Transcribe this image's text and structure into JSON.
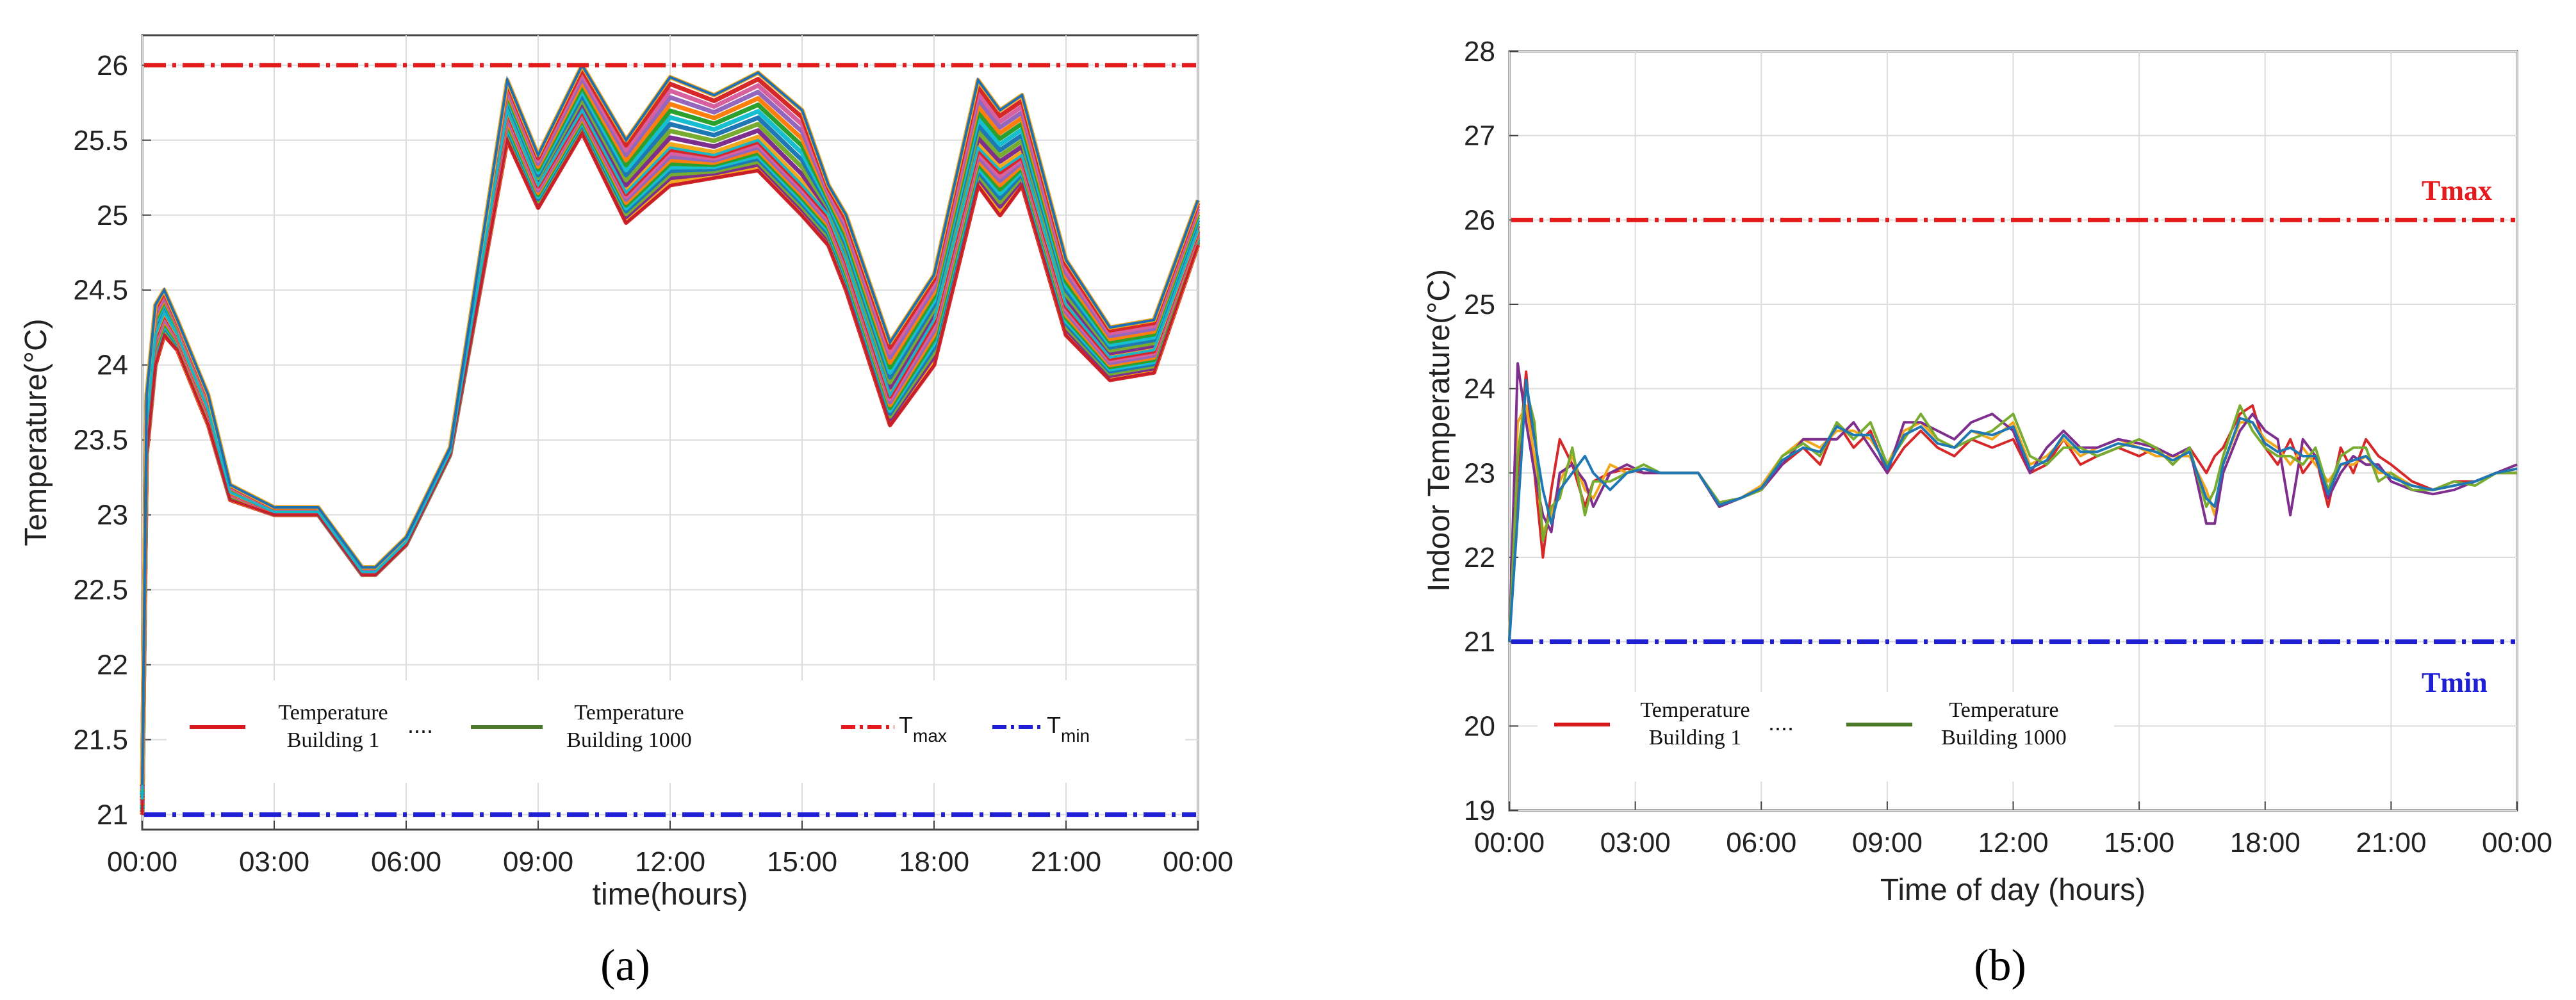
{
  "colors": {
    "tmax": "#e41a1c",
    "tmin": "#1f1fd6",
    "legend_b1": "#d7191c",
    "legend_b1000": "#4a7a2a",
    "series_palette": [
      "#d62828",
      "#f2a81d",
      "#7e2f8e",
      "#77ac30",
      "#1f77b4",
      "#17becf",
      "#2ca02c",
      "#ff7f0e",
      "#9467bd",
      "#d6619e"
    ]
  },
  "chart_data": [
    {
      "type": "line",
      "caption": "(a)",
      "xlabel": "time(hours)",
      "ylabel": "Temperature(°C)",
      "xticks": [
        "00:00",
        "03:00",
        "06:00",
        "09:00",
        "12:00",
        "15:00",
        "18:00",
        "21:00",
        "00:00"
      ],
      "xlim": [
        0,
        24
      ],
      "ylim": [
        20.9,
        26.2
      ],
      "yticks": [
        "21",
        "21.5",
        "22",
        "22.5",
        "23",
        "23.5",
        "24",
        "24.5",
        "25",
        "25.5",
        "26"
      ],
      "grid": true,
      "thresholds": {
        "tmax": 26,
        "tmin": 21
      },
      "legend": {
        "b1_line1": "Temperature",
        "b1_line2": "Building 1",
        "dots": "....",
        "b1000_line1": "Temperature",
        "b1000_line2": "Building 1000",
        "tmax_label": "T",
        "tmax_sub": "max",
        "tmin_label": "T",
        "tmin_sub": "min"
      },
      "series": [
        {
          "name": "band-low",
          "x": [
            0,
            0.1,
            0.3,
            0.5,
            0.8,
            1.5,
            2.0,
            3.0,
            4.0,
            5.0,
            5.3,
            6.0,
            7.0,
            8.3,
            9.0,
            10.0,
            11.0,
            12.0,
            13.0,
            14.0,
            15.0,
            15.6,
            16.0,
            17.0,
            18.0,
            19.0,
            19.5,
            20.0,
            21.0,
            22.0,
            23.0,
            24.0
          ],
          "y": [
            21.0,
            23.4,
            24.0,
            24.2,
            24.1,
            23.6,
            23.1,
            23.0,
            23.0,
            22.6,
            22.6,
            22.8,
            23.4,
            25.5,
            25.05,
            25.55,
            24.95,
            25.2,
            25.25,
            25.3,
            25.0,
            24.8,
            24.5,
            23.6,
            24.0,
            25.2,
            25.0,
            25.2,
            24.2,
            23.9,
            23.95,
            24.8
          ]
        },
        {
          "name": "band-mid",
          "x": [
            0,
            0.1,
            0.3,
            0.5,
            0.8,
            1.5,
            2.0,
            3.0,
            4.0,
            5.0,
            5.3,
            6.0,
            7.0,
            8.3,
            9.0,
            10.0,
            11.0,
            12.0,
            13.0,
            14.0,
            15.0,
            15.6,
            16.0,
            17.0,
            18.0,
            19.0,
            19.5,
            20.0,
            21.0,
            22.0,
            23.0,
            24.0
          ],
          "y": [
            21.1,
            23.6,
            24.2,
            24.35,
            24.2,
            23.7,
            23.15,
            23.02,
            23.02,
            22.62,
            22.62,
            22.82,
            23.42,
            25.7,
            25.2,
            25.7,
            25.15,
            25.45,
            25.4,
            25.5,
            25.2,
            25.0,
            24.7,
            23.8,
            24.3,
            25.45,
            25.3,
            25.4,
            24.4,
            24.05,
            24.1,
            24.9
          ]
        },
        {
          "name": "band-high",
          "x": [
            0,
            0.1,
            0.3,
            0.5,
            0.8,
            1.5,
            2.0,
            3.0,
            4.0,
            5.0,
            5.3,
            6.0,
            7.0,
            8.3,
            9.0,
            10.0,
            11.0,
            12.0,
            13.0,
            14.0,
            15.0,
            15.6,
            16.0,
            17.0,
            18.0,
            19.0,
            19.5,
            20.0,
            21.0,
            22.0,
            23.0,
            24.0
          ],
          "y": [
            21.2,
            23.8,
            24.4,
            24.5,
            24.3,
            23.8,
            23.2,
            23.05,
            23.05,
            22.65,
            22.65,
            22.85,
            23.45,
            25.9,
            25.4,
            26.0,
            25.5,
            25.92,
            25.8,
            25.95,
            25.7,
            25.2,
            25.0,
            24.15,
            24.6,
            25.9,
            25.7,
            25.8,
            24.7,
            24.25,
            24.3,
            25.1
          ]
        }
      ]
    },
    {
      "type": "line",
      "caption": "(b)",
      "xlabel": "Time of day (hours)",
      "ylabel": "Indoor Temperature(°C)",
      "xticks": [
        "00:00",
        "03:00",
        "06:00",
        "09:00",
        "12:00",
        "15:00",
        "18:00",
        "21:00",
        "00:00"
      ],
      "xlim": [
        0,
        24
      ],
      "ylim": [
        19,
        28
      ],
      "yticks": [
        "19",
        "20",
        "21",
        "22",
        "23",
        "24",
        "25",
        "26",
        "27",
        "28"
      ],
      "grid": true,
      "thresholds": {
        "tmax": 26,
        "tmin": 21
      },
      "annotations": {
        "tmax": "Tmax",
        "tmin": "Tmin"
      },
      "legend": {
        "b1_line1": "Temperature",
        "b1_line2": "Building 1",
        "dots": "....",
        "b1000_line1": "Temperature",
        "b1000_line2": "Building 1000"
      },
      "series": [
        {
          "name": "s1",
          "x": [
            0,
            0.2,
            0.4,
            0.6,
            0.8,
            1.0,
            1.2,
            1.5,
            1.8,
            2.0,
            2.4,
            2.8,
            3.2,
            3.6,
            4.0,
            4.5,
            5.0,
            5.5,
            6.0,
            6.5,
            7.0,
            7.4,
            7.8,
            8.2,
            8.6,
            9.0,
            9.4,
            9.8,
            10.2,
            10.6,
            11.0,
            11.5,
            12.0,
            12.4,
            12.8,
            13.2,
            13.6,
            14.0,
            14.5,
            15.0,
            15.4,
            15.8,
            16.2,
            16.6,
            16.8,
            17.0,
            17.4,
            17.7,
            18.0,
            18.3,
            18.6,
            18.9,
            19.2,
            19.5,
            19.8,
            20.1,
            20.4,
            20.7,
            21.0,
            21.5,
            22.0,
            22.5,
            23.0,
            23.5,
            24.0
          ],
          "y": [
            21.0,
            23.0,
            24.2,
            23.0,
            22.0,
            22.8,
            23.4,
            23.1,
            22.6,
            22.9,
            23.0,
            23.05,
            23.0,
            23.0,
            23.0,
            23.0,
            22.65,
            22.7,
            22.8,
            23.1,
            23.3,
            23.1,
            23.6,
            23.3,
            23.5,
            23.0,
            23.3,
            23.5,
            23.3,
            23.2,
            23.4,
            23.3,
            23.4,
            23.0,
            23.1,
            23.4,
            23.1,
            23.2,
            23.3,
            23.2,
            23.3,
            23.1,
            23.3,
            23.0,
            23.2,
            23.3,
            23.7,
            23.8,
            23.3,
            23.1,
            23.4,
            23.0,
            23.2,
            22.6,
            23.3,
            23.0,
            23.4,
            23.2,
            23.1,
            22.9,
            22.8,
            22.9,
            22.9,
            23.0,
            23.0
          ]
        },
        {
          "name": "s2",
          "x": [
            0,
            0.2,
            0.4,
            0.6,
            0.8,
            1.0,
            1.2,
            1.5,
            1.8,
            2.0,
            2.4,
            2.8,
            3.2,
            3.6,
            4.0,
            4.5,
            5.0,
            5.5,
            6.0,
            6.5,
            7.0,
            7.4,
            7.8,
            8.2,
            8.6,
            9.0,
            9.4,
            9.8,
            10.2,
            10.6,
            11.0,
            11.5,
            12.0,
            12.4,
            12.8,
            13.2,
            13.6,
            14.0,
            14.5,
            15.0,
            15.4,
            15.8,
            16.2,
            16.6,
            16.8,
            17.0,
            17.4,
            17.7,
            18.0,
            18.3,
            18.6,
            18.9,
            19.2,
            19.5,
            19.8,
            20.1,
            20.4,
            20.7,
            21.0,
            21.5,
            22.0,
            22.5,
            23.0,
            23.5,
            24.0
          ],
          "y": [
            21.1,
            23.6,
            23.8,
            23.2,
            22.3,
            22.5,
            22.9,
            23.2,
            22.8,
            22.7,
            23.1,
            23.0,
            23.05,
            23.0,
            23.0,
            23.0,
            22.6,
            22.7,
            22.85,
            23.2,
            23.4,
            23.3,
            23.5,
            23.5,
            23.4,
            23.1,
            23.5,
            23.6,
            23.4,
            23.3,
            23.5,
            23.4,
            23.6,
            23.1,
            23.2,
            23.4,
            23.2,
            23.3,
            23.4,
            23.3,
            23.2,
            23.2,
            23.2,
            22.8,
            22.5,
            23.1,
            23.6,
            23.6,
            23.4,
            23.3,
            23.1,
            23.3,
            23.1,
            22.9,
            23.1,
            23.1,
            23.2,
            23.0,
            23.0,
            22.85,
            22.8,
            22.85,
            22.9,
            23.0,
            23.1
          ]
        },
        {
          "name": "s3",
          "x": [
            0,
            0.2,
            0.4,
            0.6,
            0.8,
            1.0,
            1.2,
            1.5,
            1.8,
            2.0,
            2.4,
            2.8,
            3.2,
            3.6,
            4.0,
            4.5,
            5.0,
            5.5,
            6.0,
            6.5,
            7.0,
            7.4,
            7.8,
            8.2,
            8.6,
            9.0,
            9.4,
            9.8,
            10.2,
            10.6,
            11.0,
            11.5,
            12.0,
            12.4,
            12.8,
            13.2,
            13.6,
            14.0,
            14.5,
            15.0,
            15.4,
            15.8,
            16.2,
            16.6,
            16.8,
            17.0,
            17.4,
            17.7,
            18.0,
            18.3,
            18.6,
            18.9,
            19.2,
            19.5,
            19.8,
            20.1,
            20.4,
            20.7,
            21.0,
            21.5,
            22.0,
            22.5,
            23.0,
            23.5,
            24.0
          ],
          "y": [
            21.0,
            24.3,
            23.6,
            23.0,
            22.5,
            22.3,
            23.0,
            23.1,
            22.9,
            22.6,
            23.0,
            23.1,
            23.0,
            23.0,
            23.0,
            23.0,
            22.6,
            22.7,
            22.8,
            23.1,
            23.4,
            23.4,
            23.4,
            23.6,
            23.3,
            23.0,
            23.6,
            23.6,
            23.5,
            23.4,
            23.6,
            23.7,
            23.5,
            23.0,
            23.3,
            23.5,
            23.3,
            23.3,
            23.4,
            23.35,
            23.3,
            23.2,
            23.3,
            22.4,
            22.4,
            23.0,
            23.5,
            23.7,
            23.5,
            23.4,
            22.5,
            23.4,
            23.2,
            22.7,
            23.0,
            23.2,
            23.1,
            23.1,
            22.9,
            22.8,
            22.75,
            22.8,
            22.9,
            23.0,
            23.1
          ]
        },
        {
          "name": "s4",
          "x": [
            0,
            0.2,
            0.4,
            0.6,
            0.8,
            1.0,
            1.2,
            1.5,
            1.8,
            2.0,
            2.4,
            2.8,
            3.2,
            3.6,
            4.0,
            4.5,
            5.0,
            5.5,
            6.0,
            6.5,
            7.0,
            7.4,
            7.8,
            8.2,
            8.6,
            9.0,
            9.4,
            9.8,
            10.2,
            10.6,
            11.0,
            11.5,
            12.0,
            12.4,
            12.8,
            13.2,
            13.6,
            14.0,
            14.5,
            15.0,
            15.4,
            15.8,
            16.2,
            16.6,
            16.8,
            17.0,
            17.4,
            17.7,
            18.0,
            18.3,
            18.6,
            18.9,
            19.2,
            19.5,
            19.8,
            20.1,
            20.4,
            20.7,
            21.0,
            21.5,
            22.0,
            22.5,
            23.0,
            23.5,
            24.0
          ],
          "y": [
            21.0,
            23.2,
            24.0,
            23.6,
            22.2,
            22.6,
            22.7,
            23.3,
            22.5,
            22.9,
            22.9,
            23.0,
            23.1,
            23.0,
            23.0,
            23.0,
            22.65,
            22.7,
            22.8,
            23.2,
            23.35,
            23.2,
            23.6,
            23.4,
            23.6,
            23.1,
            23.4,
            23.7,
            23.4,
            23.3,
            23.4,
            23.5,
            23.7,
            23.2,
            23.1,
            23.3,
            23.3,
            23.2,
            23.3,
            23.4,
            23.3,
            23.1,
            23.3,
            22.6,
            22.8,
            23.2,
            23.8,
            23.5,
            23.3,
            23.2,
            23.2,
            23.1,
            23.3,
            22.8,
            23.2,
            23.3,
            23.3,
            22.9,
            23.0,
            22.8,
            22.8,
            22.9,
            22.85,
            23.0,
            23.0
          ]
        },
        {
          "name": "s5",
          "x": [
            0,
            0.2,
            0.4,
            0.6,
            0.8,
            1.0,
            1.2,
            1.5,
            1.8,
            2.0,
            2.4,
            2.8,
            3.2,
            3.6,
            4.0,
            4.5,
            5.0,
            5.5,
            6.0,
            6.5,
            7.0,
            7.4,
            7.8,
            8.2,
            8.6,
            9.0,
            9.4,
            9.8,
            10.2,
            10.6,
            11.0,
            11.5,
            12.0,
            12.4,
            12.8,
            13.2,
            13.6,
            14.0,
            14.5,
            15.0,
            15.4,
            15.8,
            16.2,
            16.6,
            16.8,
            17.0,
            17.4,
            17.7,
            18.0,
            18.3,
            18.6,
            18.9,
            19.2,
            19.5,
            19.8,
            20.1,
            20.4,
            20.7,
            21.0,
            21.5,
            22.0,
            22.5,
            23.0,
            23.5,
            24.0
          ],
          "y": [
            21.0,
            22.5,
            24.1,
            23.4,
            22.8,
            22.4,
            22.8,
            23.0,
            23.2,
            23.0,
            22.8,
            23.0,
            23.05,
            23.0,
            23.0,
            23.0,
            22.62,
            22.7,
            22.82,
            23.15,
            23.3,
            23.25,
            23.55,
            23.45,
            23.45,
            23.05,
            23.45,
            23.55,
            23.35,
            23.3,
            23.5,
            23.45,
            23.55,
            23.05,
            23.15,
            23.45,
            23.25,
            23.25,
            23.35,
            23.3,
            23.25,
            23.15,
            23.25,
            22.7,
            22.6,
            23.1,
            23.65,
            23.6,
            23.35,
            23.25,
            23.3,
            23.2,
            23.2,
            22.75,
            23.1,
            23.15,
            23.2,
            23.05,
            22.95,
            22.85,
            22.8,
            22.85,
            22.9,
            23.0,
            23.05
          ]
        }
      ]
    }
  ]
}
